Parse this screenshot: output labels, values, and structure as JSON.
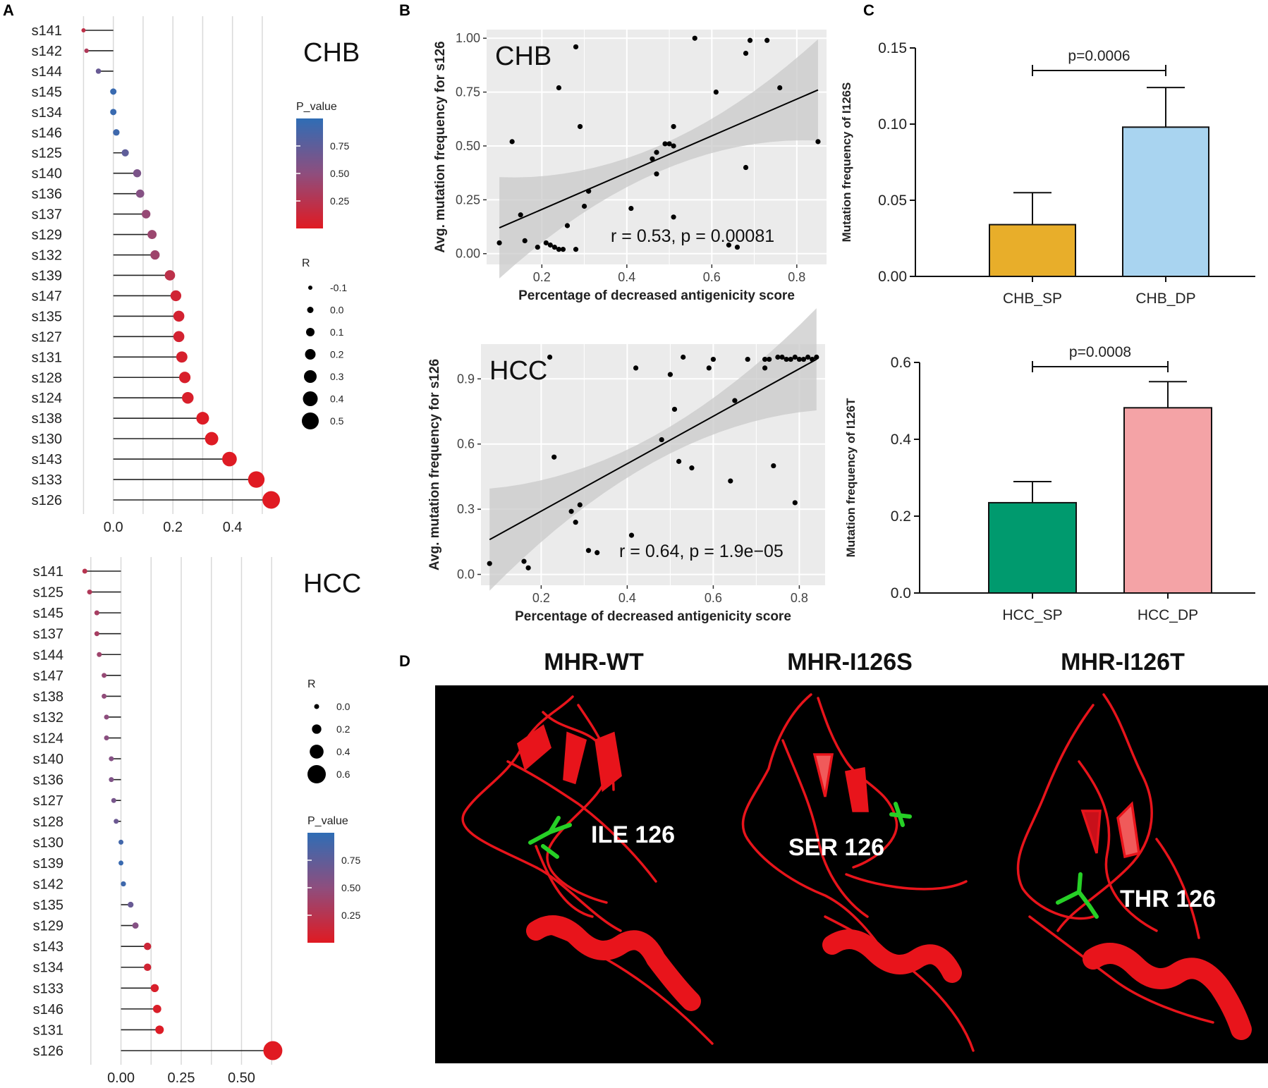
{
  "panel_letters": [
    "A",
    "B",
    "C",
    "D"
  ],
  "chart_data": [
    {
      "id": "A_top",
      "type": "lollipop",
      "title": "CHB",
      "categories": [
        "s141",
        "s142",
        "s144",
        "s145",
        "s134",
        "s146",
        "s125",
        "s140",
        "s136",
        "s137",
        "s129",
        "s132",
        "s139",
        "s147",
        "s135",
        "s127",
        "s131",
        "s128",
        "s124",
        "s138",
        "s130",
        "s143",
        "s133",
        "s126"
      ],
      "values": [
        -0.1,
        -0.09,
        -0.05,
        0.0,
        0.0,
        0.01,
        0.04,
        0.08,
        0.09,
        0.11,
        0.13,
        0.14,
        0.19,
        0.21,
        0.22,
        0.22,
        0.23,
        0.24,
        0.25,
        0.3,
        0.33,
        0.39,
        0.48,
        0.53
      ],
      "p_values": [
        0.2,
        0.3,
        0.7,
        0.95,
        0.95,
        0.92,
        0.75,
        0.6,
        0.55,
        0.45,
        0.42,
        0.4,
        0.22,
        0.1,
        0.08,
        0.08,
        0.06,
        0.05,
        0.05,
        0.02,
        0.01,
        0.01,
        0.001,
        0.001
      ],
      "xticks": [
        0.0,
        0.2,
        0.4
      ],
      "xtick_labels": [
        "0.0",
        "0.2",
        "0.4"
      ],
      "xlim": [
        -0.12,
        0.55
      ],
      "legend_p_title": "P_value",
      "legend_p_ticks": [
        "0.75",
        "0.50",
        "0.25"
      ],
      "legend_p_tick_values": [
        0.75,
        0.5,
        0.25
      ],
      "legend_r_title": "R",
      "legend_r_labels": [
        "-0.1",
        "0.0",
        "0.1",
        "0.2",
        "0.3",
        "0.4",
        "0.5"
      ],
      "legend_r_values": [
        -0.1,
        0.0,
        0.1,
        0.2,
        0.3,
        0.4,
        0.5
      ]
    },
    {
      "id": "A_bottom",
      "type": "lollipop",
      "title": "HCC",
      "categories": [
        "s141",
        "s125",
        "s145",
        "s137",
        "s144",
        "s147",
        "s138",
        "s132",
        "s124",
        "s140",
        "s136",
        "s127",
        "s128",
        "s130",
        "s139",
        "s142",
        "s135",
        "s129",
        "s143",
        "s134",
        "s133",
        "s146",
        "s131",
        "s126"
      ],
      "values": [
        -0.15,
        -0.13,
        -0.1,
        -0.1,
        -0.09,
        -0.07,
        -0.07,
        -0.06,
        -0.06,
        -0.04,
        -0.04,
        -0.03,
        -0.02,
        0.0,
        0.0,
        0.01,
        0.04,
        0.06,
        0.11,
        0.11,
        0.14,
        0.15,
        0.16,
        0.63
      ],
      "p_values": [
        0.25,
        0.3,
        0.35,
        0.35,
        0.4,
        0.45,
        0.48,
        0.5,
        0.52,
        0.55,
        0.58,
        0.62,
        0.68,
        0.9,
        0.95,
        0.92,
        0.7,
        0.55,
        0.12,
        0.1,
        0.05,
        0.04,
        0.02,
        0.001
      ],
      "xticks": [
        0.0,
        0.25,
        0.5
      ],
      "xtick_labels": [
        "0.00",
        "0.25",
        "0.50"
      ],
      "xlim": [
        -0.18,
        0.68
      ],
      "legend_r_title": "R",
      "legend_r_labels": [
        "0.0",
        "0.2",
        "0.4",
        "0.6"
      ],
      "legend_r_values": [
        0.0,
        0.2,
        0.4,
        0.6
      ],
      "legend_p_title": "P_value",
      "legend_p_ticks": [
        "0.75",
        "0.50",
        "0.25"
      ],
      "legend_p_tick_values": [
        0.75,
        0.5,
        0.25
      ]
    },
    {
      "id": "B_top",
      "type": "scatter",
      "title": "CHB",
      "xlabel": "Percentage of decreased antigenicity score",
      "ylabel": "Avg. mutation frequency for s126",
      "annotation": "r = 0.53, p = 0.00081",
      "xlim": [
        0.07,
        0.87
      ],
      "ylim": [
        -0.05,
        1.04
      ],
      "xticks": [
        0.2,
        0.4,
        0.6,
        0.8
      ],
      "xtick_labels": [
        "0.2",
        "0.4",
        "0.6",
        "0.8"
      ],
      "yticks": [
        0.0,
        0.25,
        0.5,
        0.75,
        1.0
      ],
      "ytick_labels": [
        "0.00",
        "0.25",
        "0.50",
        "0.75",
        "1.00"
      ],
      "fit": {
        "x": [
          0.1,
          0.85
        ],
        "y": [
          0.12,
          0.76
        ]
      },
      "x": [
        0.1,
        0.13,
        0.15,
        0.16,
        0.19,
        0.21,
        0.22,
        0.23,
        0.24,
        0.24,
        0.25,
        0.26,
        0.28,
        0.28,
        0.29,
        0.3,
        0.31,
        0.31,
        0.41,
        0.46,
        0.47,
        0.47,
        0.49,
        0.5,
        0.51,
        0.51,
        0.51,
        0.56,
        0.61,
        0.64,
        0.66,
        0.68,
        0.68,
        0.69,
        0.73,
        0.76,
        0.85
      ],
      "y": [
        0.05,
        0.52,
        0.18,
        0.06,
        0.03,
        0.05,
        0.04,
        0.03,
        0.77,
        0.02,
        0.02,
        0.13,
        0.96,
        0.02,
        0.59,
        0.22,
        0.29,
        0.29,
        0.21,
        0.44,
        0.47,
        0.37,
        0.51,
        0.51,
        0.17,
        0.59,
        0.5,
        1.0,
        0.75,
        0.04,
        0.03,
        0.4,
        0.93,
        0.99,
        0.99,
        0.77,
        0.52
      ]
    },
    {
      "id": "B_bottom",
      "type": "scatter",
      "title": "HCC",
      "xlabel": "Percentage of decreased antigenicity score",
      "ylabel": "Avg. mutation frequency for s126",
      "annotation": "r = 0.64, p = 1.9e−05",
      "xlim": [
        0.06,
        0.86
      ],
      "ylim": [
        -0.05,
        1.06
      ],
      "xticks": [
        0.2,
        0.4,
        0.6,
        0.8
      ],
      "xtick_labels": [
        "0.2",
        "0.4",
        "0.6",
        "0.8"
      ],
      "yticks": [
        0.0,
        0.3,
        0.6,
        0.9
      ],
      "ytick_labels": [
        "0.0",
        "0.3",
        "0.6",
        "0.9"
      ],
      "fit": {
        "x": [
          0.08,
          0.84
        ],
        "y": [
          0.16,
          0.99
        ]
      },
      "x": [
        0.08,
        0.16,
        0.17,
        0.22,
        0.23,
        0.27,
        0.28,
        0.29,
        0.31,
        0.33,
        0.41,
        0.42,
        0.48,
        0.5,
        0.51,
        0.52,
        0.53,
        0.55,
        0.59,
        0.6,
        0.64,
        0.65,
        0.68,
        0.72,
        0.72,
        0.73,
        0.74,
        0.75,
        0.76,
        0.77,
        0.78,
        0.79,
        0.79,
        0.8,
        0.81,
        0.82,
        0.83,
        0.84
      ],
      "y": [
        0.05,
        0.06,
        0.03,
        1.0,
        0.54,
        0.29,
        0.24,
        0.32,
        0.11,
        0.1,
        0.18,
        0.95,
        0.62,
        0.92,
        0.76,
        0.52,
        1.0,
        0.49,
        0.95,
        0.99,
        0.43,
        0.8,
        0.99,
        0.99,
        0.95,
        0.99,
        0.5,
        1.0,
        1.0,
        0.99,
        0.99,
        0.33,
        1.0,
        0.99,
        0.99,
        1.0,
        0.99,
        1.0
      ]
    },
    {
      "id": "C_top",
      "type": "bar",
      "ylabel": "Mutation frequency of I126S",
      "categories": [
        "CHB_SP",
        "CHB_DP"
      ],
      "values": [
        0.034,
        0.098
      ],
      "errors": [
        0.021,
        0.026
      ],
      "colors": [
        "#E8AE2A",
        "#A9D4F0"
      ],
      "ylim": [
        0,
        0.15
      ],
      "yticks": [
        0.0,
        0.05,
        0.1,
        0.15
      ],
      "ytick_labels": [
        "0.00",
        "0.05",
        "0.10",
        "0.15"
      ],
      "annotation": "p=0.0006"
    },
    {
      "id": "C_bottom",
      "type": "bar",
      "ylabel": "Mutation frequency of I126T",
      "categories": [
        "HCC_SP",
        "HCC_DP"
      ],
      "values": [
        0.235,
        0.482
      ],
      "errors": [
        0.055,
        0.068
      ],
      "colors": [
        "#009A6E",
        "#F4A3A6"
      ],
      "ylim": [
        0,
        0.6
      ],
      "yticks": [
        0.0,
        0.2,
        0.4,
        0.6
      ],
      "ytick_labels": [
        "0.0",
        "0.2",
        "0.4",
        "0.6"
      ],
      "annotation": "p=0.0008"
    }
  ],
  "panel_d": {
    "titles": [
      "MHR-WT",
      "MHR-I126S",
      "MHR-I126T"
    ],
    "labels": [
      "ILE 126",
      "SER 126",
      "THR 126"
    ]
  }
}
